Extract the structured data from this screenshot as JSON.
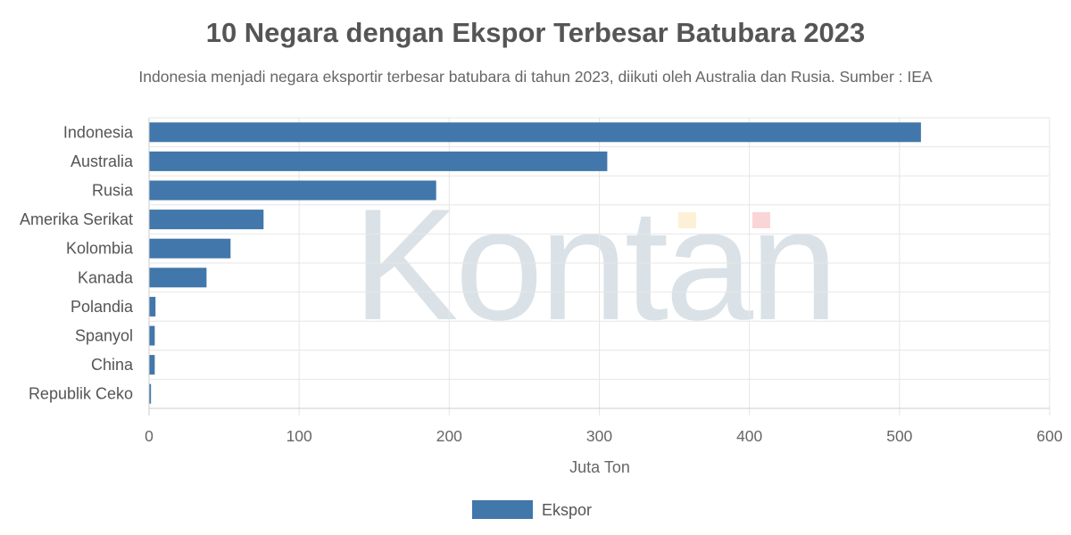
{
  "chart_data": {
    "type": "bar",
    "orientation": "horizontal",
    "title": "10 Negara dengan Ekspor Terbesar Batubara 2023",
    "subtitle": "Indonesia menjadi negara eksportir terbesar batubara di tahun 2023, diikuti oleh Australia dan Rusia. Sumber : IEA",
    "categories": [
      "Indonesia",
      "Australia",
      "Rusia",
      "Amerika Serikat",
      "Kolombia",
      "Kanada",
      "Polandia",
      "Spanyol",
      "China",
      "Republik Ceko"
    ],
    "series": [
      {
        "name": "Ekspor",
        "values": [
          514,
          305,
          191,
          76,
          54,
          38,
          4,
          3.5,
          3.5,
          1
        ],
        "color": "#4177aa"
      }
    ],
    "xlabel": "Juta Ton",
    "ylabel": "",
    "xlim": [
      0,
      600
    ],
    "xticks": [
      "0",
      "100",
      "200",
      "300",
      "400",
      "500",
      "600"
    ],
    "grid": true,
    "legend_position": "bottom-center",
    "watermark": "Kontan"
  }
}
